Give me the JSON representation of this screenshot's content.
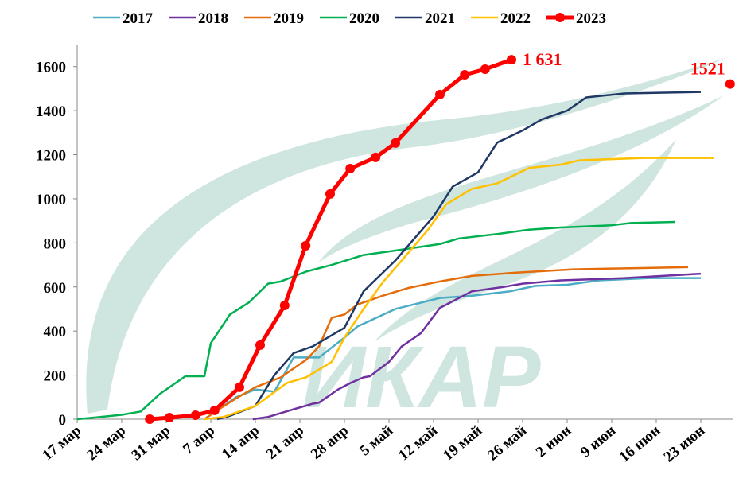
{
  "chart_data": {
    "type": "line",
    "watermark": "ИКАР",
    "xlim": [
      0,
      103
    ],
    "ylim": [
      0,
      1700
    ],
    "xticks": [
      {
        "value": 0,
        "label": "17 мар"
      },
      {
        "value": 7,
        "label": "24 мар"
      },
      {
        "value": 14,
        "label": "31 мар"
      },
      {
        "value": 21,
        "label": "7 апр"
      },
      {
        "value": 28,
        "label": "14 апр"
      },
      {
        "value": 35,
        "label": "21 апр"
      },
      {
        "value": 42,
        "label": "28 апр"
      },
      {
        "value": 49,
        "label": "5 май"
      },
      {
        "value": 56,
        "label": "12 май"
      },
      {
        "value": 63,
        "label": "19 май"
      },
      {
        "value": 70,
        "label": "26 май"
      },
      {
        "value": 77,
        "label": "2 июн"
      },
      {
        "value": 84,
        "label": "9 июн"
      },
      {
        "value": 91,
        "label": "16 июн"
      },
      {
        "value": 98,
        "label": "23 июн"
      }
    ],
    "yticks": [
      0,
      200,
      400,
      600,
      800,
      1000,
      1200,
      1400,
      1600
    ],
    "series": [
      {
        "name": "2017",
        "color": "#4bacc6",
        "x": [
          20,
          25,
          28,
          31,
          34,
          38,
          42,
          44,
          50,
          57,
          62,
          68,
          72,
          77,
          82,
          90,
          98
        ],
        "values": [
          0,
          100,
          135,
          125,
          280,
          280,
          370,
          420,
          500,
          550,
          560,
          580,
          605,
          610,
          630,
          640,
          640
        ]
      },
      {
        "name": "2018",
        "color": "#7030a0",
        "x": [
          27.6,
          30,
          34,
          37,
          38,
          41,
          43,
          45,
          46,
          49,
          51,
          54,
          57,
          62,
          67,
          70,
          76,
          86,
          95,
          98
        ],
        "values": [
          0,
          10,
          45,
          70,
          75,
          135,
          165,
          190,
          195,
          260,
          330,
          390,
          505,
          580,
          600,
          615,
          630,
          640,
          655,
          660
        ]
      },
      {
        "name": "2019",
        "color": "#e46c0a",
        "x": [
          20,
          22,
          25,
          28,
          32,
          36,
          38,
          40,
          42,
          44,
          48,
          52,
          57,
          62,
          69,
          78,
          87,
          96
        ],
        "values": [
          0,
          40,
          95,
          145,
          190,
          270,
          330,
          460,
          475,
          520,
          560,
          595,
          625,
          650,
          665,
          680,
          685,
          690
        ]
      },
      {
        "name": "2020",
        "color": "#00b050",
        "x": [
          0,
          3,
          7,
          10,
          13,
          17,
          20,
          21,
          24,
          27,
          30,
          32,
          36,
          40,
          45,
          50,
          57,
          60,
          66,
          71,
          76,
          84,
          87,
          94
        ],
        "values": [
          0,
          8,
          20,
          35,
          115,
          195,
          195,
          345,
          475,
          530,
          615,
          625,
          670,
          700,
          745,
          765,
          795,
          820,
          840,
          860,
          870,
          880,
          890,
          895
        ]
      },
      {
        "name": "2021",
        "color": "#1f3864",
        "x": [
          22,
          24,
          28,
          31,
          34,
          37,
          42,
          45,
          50,
          56,
          59,
          63,
          66,
          70,
          73,
          77,
          80,
          86,
          98
        ],
        "values": [
          0,
          15,
          60,
          200,
          300,
          330,
          415,
          580,
          720,
          920,
          1055,
          1120,
          1255,
          1310,
          1360,
          1400,
          1460,
          1478,
          1485
        ]
      },
      {
        "name": "2022",
        "color": "#ffc000",
        "x": [
          20,
          23,
          28,
          33,
          36,
          40,
          42,
          45,
          48,
          51,
          55,
          58,
          62,
          66,
          71,
          76,
          79,
          89,
          100
        ],
        "values": [
          0,
          10,
          60,
          165,
          190,
          260,
          370,
          500,
          620,
          720,
          855,
          975,
          1045,
          1070,
          1140,
          1155,
          1175,
          1185,
          1185
        ]
      },
      {
        "name": "2023",
        "color": "#ff0000",
        "markers": true,
        "end_label": "1 631",
        "x": [
          11.4,
          14.5,
          18.6,
          21.6,
          25.5,
          28.75,
          32.6,
          35.9,
          39.75,
          42.9,
          46.9,
          50,
          57,
          60.9,
          64.1,
          68.25
        ],
        "values": [
          0,
          7,
          18,
          40,
          145,
          336,
          516,
          787,
          1022,
          1137,
          1188,
          1253,
          1473,
          1563,
          1588,
          1631
        ]
      }
    ],
    "annotations": [
      {
        "text": "1521",
        "x": 102.6,
        "y": 1521,
        "color": "#ff0000"
      }
    ]
  }
}
